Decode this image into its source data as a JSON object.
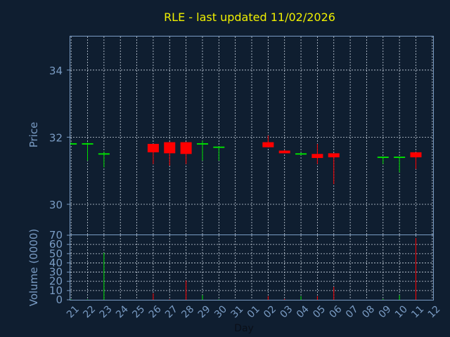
{
  "chart_data": {
    "type": "candlestick",
    "title": "RLE - last updated 11/02/2026",
    "colors": {
      "background": "#0f1e30",
      "up": "#00e000",
      "down": "#ff0000",
      "title": "#f0f000",
      "axis": "#7a9cc4",
      "grid": "#c8d2de"
    },
    "price_panel": {
      "ylabel": "Price",
      "ylim": [
        29.1,
        35.0
      ],
      "yticks": [
        30,
        32,
        34
      ],
      "grid": true
    },
    "volume_panel": {
      "ylabel": "Volume (0000)",
      "ylim": [
        0,
        70
      ],
      "yticks": [
        0,
        10,
        20,
        30,
        40,
        50,
        60,
        70
      ],
      "grid": true
    },
    "xlabel": "Day",
    "x_tick_labels": [
      "21",
      "22",
      "23",
      "24",
      "25",
      "26",
      "27",
      "28",
      "29",
      "30",
      "31",
      "01",
      "02",
      "03",
      "04",
      "05",
      "06",
      "07",
      "08",
      "09",
      "10",
      "11",
      "12"
    ],
    "x_range": [
      -0.05,
      22.05
    ],
    "candles": [
      {
        "x": 0.0,
        "open": 31.78,
        "close": 31.82,
        "high": 31.84,
        "low": 31.78,
        "volume": 0.5
      },
      {
        "x": 1.0,
        "open": 31.78,
        "close": 31.82,
        "high": 31.84,
        "low": 31.3,
        "volume": 0.5
      },
      {
        "x": 2.0,
        "open": 31.48,
        "close": 31.52,
        "high": 31.56,
        "low": 31.1,
        "volume": 51
      },
      {
        "x": 5.0,
        "open": 31.8,
        "close": 31.55,
        "high": 31.8,
        "low": 31.2,
        "volume": 7
      },
      {
        "x": 6.0,
        "open": 31.85,
        "close": 31.52,
        "high": 31.86,
        "low": 31.15,
        "volume": 0.5
      },
      {
        "x": 7.0,
        "open": 31.85,
        "close": 31.5,
        "high": 31.86,
        "low": 31.2,
        "volume": 21
      },
      {
        "x": 8.0,
        "open": 31.78,
        "close": 31.82,
        "high": 31.9,
        "low": 31.3,
        "volume": 5
      },
      {
        "x": 9.0,
        "open": 31.68,
        "close": 31.72,
        "high": 31.72,
        "low": 31.3,
        "volume": 0.5
      },
      {
        "x": 12.0,
        "open": 31.85,
        "close": 31.7,
        "high": 32.05,
        "low": 31.7,
        "volume": 4
      },
      {
        "x": 13.0,
        "open": 31.6,
        "close": 31.52,
        "high": 31.62,
        "low": 31.52,
        "volume": 1
      },
      {
        "x": 14.0,
        "open": 31.48,
        "close": 31.52,
        "high": 31.54,
        "low": 31.46,
        "volume": 4
      },
      {
        "x": 15.0,
        "open": 31.5,
        "close": 31.38,
        "high": 31.8,
        "low": 31.2,
        "volume": 4
      },
      {
        "x": 16.0,
        "open": 31.52,
        "close": 31.4,
        "high": 31.52,
        "low": 30.6,
        "volume": 14
      },
      {
        "x": 19.0,
        "open": 31.38,
        "close": 31.42,
        "high": 31.42,
        "low": 31.2,
        "volume": 1
      },
      {
        "x": 20.0,
        "open": 31.38,
        "close": 31.42,
        "high": 31.42,
        "low": 30.95,
        "volume": 5
      },
      {
        "x": 21.0,
        "open": 31.55,
        "close": 31.4,
        "high": 31.55,
        "low": 31.05,
        "volume": 67
      }
    ]
  }
}
